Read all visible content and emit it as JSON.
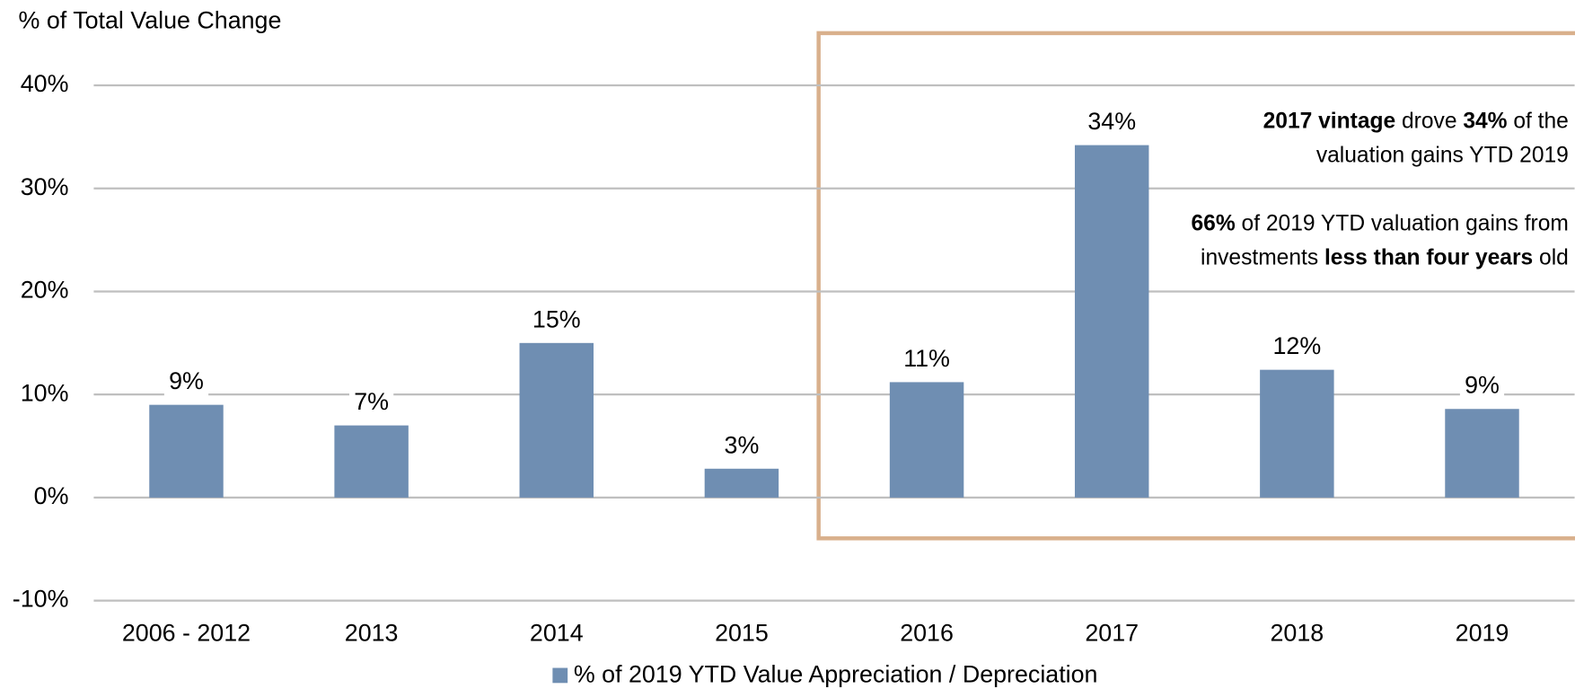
{
  "chart_data": {
    "type": "bar",
    "y_axis_label": "% of Total Value Change",
    "categories": [
      "2006 - 2012",
      "2013",
      "2014",
      "2015",
      "2016",
      "2017",
      "2018",
      "2019"
    ],
    "series": [
      {
        "name": "% of 2019 YTD Value Appreciation / Depreciation",
        "color": "#6f8eb2",
        "values": [
          9.0,
          7.0,
          15.0,
          2.8,
          11.2,
          34.2,
          12.4,
          8.6
        ],
        "value_labels": [
          "9%",
          "7%",
          "15%",
          "3%",
          "11%",
          "34%",
          "12%",
          "9%"
        ]
      }
    ],
    "ylim": [
      -10,
      40
    ],
    "yticks": [
      {
        "value": -10,
        "label": "-10%"
      },
      {
        "value": 0,
        "label": "0%"
      },
      {
        "value": 10,
        "label": "10%"
      },
      {
        "value": 20,
        "label": "20%"
      },
      {
        "value": 30,
        "label": "30%"
      },
      {
        "value": 40,
        "label": "40%"
      }
    ],
    "grid": true,
    "legend": "bottom",
    "annotations": [
      {
        "lines": [
          [
            {
              "text": "2017 vintage",
              "bold": true
            },
            {
              "text": " drove "
            },
            {
              "text": "34%",
              "bold": true
            },
            {
              "text": " of the"
            }
          ],
          [
            {
              "text": "valuation gains YTD 2019"
            }
          ]
        ]
      },
      {
        "lines": [
          [
            {
              "text": "66%",
              "bold": true
            },
            {
              "text": " of 2019 YTD valuation gains from"
            }
          ],
          [
            {
              "text": "investments "
            },
            {
              "text": "less than four years",
              "bold": true
            },
            {
              "text": " old"
            }
          ]
        ]
      }
    ]
  }
}
